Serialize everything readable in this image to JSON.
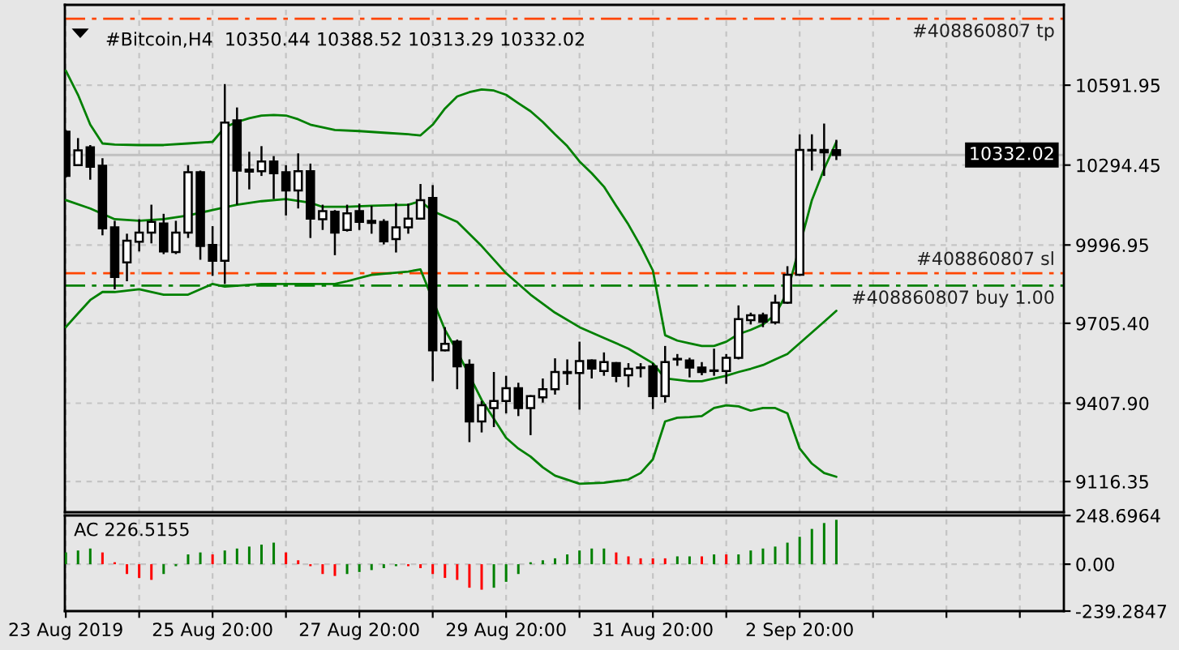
{
  "chart_data": [
    {
      "type": "candlestick",
      "title": "#Bitcoin,H4  10350.44 10388.52 10313.29 10332.02",
      "x": [
        "2019-08-23T20:00",
        "2019-08-24T00:00",
        "2019-08-24T04:00",
        "2019-08-24T08:00",
        "2019-08-24T12:00",
        "2019-08-24T16:00",
        "2019-08-24T20:00",
        "2019-08-25T00:00",
        "2019-08-25T04:00",
        "2019-08-25T08:00",
        "2019-08-25T12:00",
        "2019-08-25T16:00",
        "2019-08-25T20:00",
        "2019-08-26T00:00",
        "2019-08-26T04:00",
        "2019-08-26T08:00",
        "2019-08-26T12:00",
        "2019-08-26T16:00",
        "2019-08-26T20:00",
        "2019-08-27T00:00",
        "2019-08-27T04:00",
        "2019-08-27T08:00",
        "2019-08-27T12:00",
        "2019-08-27T16:00",
        "2019-08-27T20:00",
        "2019-08-28T00:00",
        "2019-08-28T04:00",
        "2019-08-28T08:00",
        "2019-08-28T12:00",
        "2019-08-28T16:00",
        "2019-08-28T20:00",
        "2019-08-29T00:00",
        "2019-08-29T04:00",
        "2019-08-29T08:00",
        "2019-08-29T12:00",
        "2019-08-29T16:00",
        "2019-08-29T20:00",
        "2019-08-30T00:00",
        "2019-08-30T04:00",
        "2019-08-30T08:00",
        "2019-08-30T12:00",
        "2019-08-30T16:00",
        "2019-08-30T20:00",
        "2019-08-31T00:00",
        "2019-08-31T04:00",
        "2019-08-31T08:00",
        "2019-08-31T12:00",
        "2019-08-31T16:00",
        "2019-08-31T20:00",
        "2019-09-01T00:00",
        "2019-09-01T04:00",
        "2019-09-01T08:00",
        "2019-09-01T12:00",
        "2019-09-01T16:00",
        "2019-09-01T20:00",
        "2019-09-02T00:00",
        "2019-09-02T04:00",
        "2019-09-02T08:00",
        "2019-09-02T12:00",
        "2019-09-02T16:00",
        "2019-09-02T20:00",
        "2019-09-03T00:00",
        "2019-09-03T04:00",
        "2019-09-03T08:00"
      ],
      "ohlc": [
        [
          10419,
          10425,
          10248,
          10254
        ],
        [
          10294,
          10395,
          10294,
          10349
        ],
        [
          10361,
          10369,
          10240,
          10288
        ],
        [
          10292,
          10320,
          10033,
          10059
        ],
        [
          10063,
          10087,
          9832,
          9878
        ],
        [
          9932,
          10039,
          9862,
          10013
        ],
        [
          10009,
          10093,
          9973,
          10043
        ],
        [
          10043,
          10147,
          10003,
          10083
        ],
        [
          10077,
          10113,
          9963,
          9973
        ],
        [
          9971,
          10087,
          9963,
          10043
        ],
        [
          10043,
          10294,
          10023,
          10268
        ],
        [
          10268,
          10274,
          9942,
          9993
        ],
        [
          9997,
          10067,
          9882,
          9938
        ],
        [
          9938,
          10596,
          9852,
          10453
        ],
        [
          10461,
          10509,
          10147,
          10274
        ],
        [
          10278,
          10344,
          10204,
          10270
        ],
        [
          10272,
          10365,
          10254,
          10308
        ],
        [
          10308,
          10328,
          10168,
          10264
        ],
        [
          10268,
          10294,
          10107,
          10200
        ],
        [
          10200,
          10338,
          10133,
          10272
        ],
        [
          10272,
          10300,
          10023,
          10095
        ],
        [
          10093,
          10147,
          10053,
          10123
        ],
        [
          10121,
          10127,
          9959,
          10043
        ],
        [
          10053,
          10147,
          10047,
          10115
        ],
        [
          10123,
          10151,
          10053,
          10083
        ],
        [
          10087,
          10143,
          10039,
          10079
        ],
        [
          10083,
          10093,
          9999,
          10011
        ],
        [
          10019,
          10153,
          9969,
          10063
        ],
        [
          10063,
          10151,
          10039,
          10095
        ],
        [
          10095,
          10224,
          10091,
          10164
        ],
        [
          10172,
          10220,
          9490,
          9605
        ],
        [
          9605,
          9691,
          9601,
          9629
        ],
        [
          9637,
          9645,
          9460,
          9545
        ],
        [
          9551,
          9571,
          9263,
          9340
        ],
        [
          9340,
          9416,
          9299,
          9400
        ],
        [
          9390,
          9524,
          9319,
          9416
        ],
        [
          9416,
          9510,
          9370,
          9464
        ],
        [
          9464,
          9484,
          9360,
          9390
        ],
        [
          9390,
          9438,
          9289,
          9434
        ],
        [
          9430,
          9500,
          9410,
          9460
        ],
        [
          9460,
          9575,
          9440,
          9524
        ],
        [
          9524,
          9571,
          9476,
          9520
        ],
        [
          9520,
          9637,
          9384,
          9565
        ],
        [
          9567,
          9571,
          9500,
          9537
        ],
        [
          9528,
          9597,
          9510,
          9561
        ],
        [
          9557,
          9561,
          9486,
          9510
        ],
        [
          9512,
          9557,
          9468,
          9536
        ],
        [
          9541,
          9557,
          9504,
          9539
        ],
        [
          9545,
          9557,
          9386,
          9434
        ],
        [
          9434,
          9621,
          9410,
          9561
        ],
        [
          9571,
          9591,
          9547,
          9573
        ],
        [
          9567,
          9577,
          9504,
          9541
        ],
        [
          9541,
          9561,
          9512,
          9524
        ],
        [
          9530,
          9611,
          9510,
          9528
        ],
        [
          9528,
          9591,
          9480,
          9577
        ],
        [
          9577,
          9772,
          9571,
          9721
        ],
        [
          9717,
          9745,
          9701,
          9735
        ],
        [
          9735,
          9745,
          9691,
          9711
        ],
        [
          9709,
          9812,
          9701,
          9782
        ],
        [
          9782,
          9918,
          9778,
          9886
        ],
        [
          9886,
          10409,
          9882,
          10351
        ],
        [
          10351,
          10409,
          10274,
          10349
        ],
        [
          10351,
          10449,
          10254,
          10342
        ],
        [
          10350.44,
          10388.52,
          10313.29,
          10332.02
        ]
      ],
      "color": "#000000",
      "colors": [
        "#000000",
        "#ffffff",
        "#000000",
        "#000000",
        "#000000",
        "#ffffff",
        "#ffffff",
        "#ffffff",
        "#000000",
        "#ffffff",
        "#ffffff",
        "#000000",
        "#000000",
        "#ffffff",
        "#000000",
        "#000000",
        "#ffffff",
        "#000000",
        "#000000",
        "#ffffff",
        "#000000",
        "#ffffff",
        "#000000",
        "#ffffff",
        "#000000",
        "#000000",
        "#000000",
        "#ffffff",
        "#ffffff",
        "#ffffff",
        "#000000",
        "#ffffff",
        "#000000",
        "#000000",
        "#ffffff",
        "#ffffff",
        "#ffffff",
        "#000000",
        "#ffffff",
        "#ffffff",
        "#ffffff",
        "#000000",
        "#ffffff",
        "#000000",
        "#ffffff",
        "#000000",
        "#ffffff",
        "#000000",
        "#000000",
        "#ffffff",
        "#ffffff",
        "#000000",
        "#000000",
        "#000000",
        "#ffffff",
        "#ffffff",
        "#ffffff",
        "#000000",
        "#ffffff",
        "#ffffff",
        "#ffffff",
        "#000000",
        "#000000",
        "#000000"
      ],
      "series": [
        {
          "type": "line",
          "color": "#008000",
          "x": [
            "2019-08-23T20:00",
            "2019-08-24T00:00",
            "2019-08-24T04:00",
            "2019-08-24T08:00",
            "2019-08-24T12:00",
            "2019-08-24T20:00",
            "2019-08-25T04:00",
            "2019-08-25T12:00",
            "2019-08-25T20:00",
            "2019-08-26T00:00",
            "2019-08-26T04:00",
            "2019-08-26T08:00",
            "2019-08-26T12:00",
            "2019-08-26T16:00",
            "2019-08-26T20:00",
            "2019-08-27T00:00",
            "2019-08-27T04:00",
            "2019-08-27T12:00",
            "2019-08-27T20:00",
            "2019-08-28T04:00",
            "2019-08-28T12:00",
            "2019-08-28T16:00",
            "2019-08-28T20:00",
            "2019-08-29T00:00",
            "2019-08-29T04:00",
            "2019-08-29T08:00",
            "2019-08-29T12:00",
            "2019-08-29T16:00",
            "2019-08-29T20:00",
            "2019-08-30T00:00",
            "2019-08-30T04:00",
            "2019-08-30T08:00",
            "2019-08-30T12:00",
            "2019-08-30T16:00",
            "2019-08-30T20:00",
            "2019-08-31T00:00",
            "2019-08-31T04:00",
            "2019-08-31T08:00",
            "2019-08-31T12:00",
            "2019-08-31T16:00",
            "2019-08-31T20:00",
            "2019-09-01T00:00",
            "2019-09-01T04:00",
            "2019-09-01T08:00",
            "2019-09-01T12:00",
            "2019-09-01T16:00",
            "2019-09-01T20:00",
            "2019-09-02T00:00",
            "2019-09-02T04:00",
            "2019-09-02T08:00",
            "2019-09-02T12:00",
            "2019-09-02T16:00",
            "2019-09-03T00:00",
            "2019-09-03T04:00",
            "2019-09-03T08:00"
          ],
          "values": [
            10646,
            10556,
            10445,
            10375,
            10371,
            10369,
            10369,
            10375,
            10381,
            10435,
            10455,
            10469,
            10479,
            10481,
            10479,
            10465,
            10445,
            10425,
            10421,
            10415,
            10409,
            10405,
            10445,
            10505,
            10550,
            10566,
            10576,
            10572,
            10556,
            10525,
            10495,
            10455,
            10409,
            10365,
            10308,
            10264,
            10214,
            10143,
            10073,
            9993,
            9902,
            9661,
            9641,
            9631,
            9621,
            9621,
            9637,
            9665,
            9681,
            9701,
            9737,
            9822,
            10164,
            10280,
            10381
          ]
        },
        {
          "type": "line",
          "color": "#008000",
          "x": [
            "2019-08-23T20:00",
            "2019-08-24T04:00",
            "2019-08-24T12:00",
            "2019-08-24T20:00",
            "2019-08-25T04:00",
            "2019-08-25T12:00",
            "2019-08-25T20:00",
            "2019-08-26T04:00",
            "2019-08-26T12:00",
            "2019-08-26T20:00",
            "2019-08-27T04:00",
            "2019-08-27T08:00",
            "2019-08-27T16:00",
            "2019-08-28T00:00",
            "2019-08-28T12:00",
            "2019-08-28T16:00",
            "2019-08-28T20:00",
            "2019-08-29T04:00",
            "2019-08-29T12:00",
            "2019-08-29T20:00",
            "2019-08-30T04:00",
            "2019-08-30T12:00",
            "2019-08-30T20:00",
            "2019-08-31T04:00",
            "2019-08-31T12:00",
            "2019-08-31T20:00",
            "2019-09-01T00:00",
            "2019-09-01T08:00",
            "2019-09-01T12:00",
            "2019-09-01T20:00",
            "2019-09-02T00:00",
            "2019-09-02T04:00",
            "2019-09-02T08:00",
            "2019-09-02T12:00",
            "2019-09-02T16:00",
            "2019-09-02T20:00",
            "2019-09-03T00:00",
            "2019-09-03T04:00",
            "2019-09-03T08:00"
          ],
          "values": [
            10164,
            10133,
            10093,
            10087,
            10093,
            10107,
            10127,
            10147,
            10160,
            10168,
            10154,
            10139,
            10139,
            10143,
            10147,
            10160,
            10123,
            10083,
            9993,
            9892,
            9812,
            9745,
            9691,
            9651,
            9611,
            9557,
            9500,
            9490,
            9490,
            9510,
            9524,
            9536,
            9550,
            9571,
            9591,
            9631,
            9671,
            9711,
            9752
          ]
        },
        {
          "type": "line",
          "color": "#008000",
          "x": [
            "2019-08-23T20:00",
            "2019-08-24T00:00",
            "2019-08-24T04:00",
            "2019-08-24T08:00",
            "2019-08-24T12:00",
            "2019-08-24T20:00",
            "2019-08-25T04:00",
            "2019-08-25T12:00",
            "2019-08-25T20:00",
            "2019-08-26T00:00",
            "2019-08-26T12:00",
            "2019-08-27T00:00",
            "2019-08-27T12:00",
            "2019-08-27T16:00",
            "2019-08-28T00:00",
            "2019-08-28T12:00",
            "2019-08-28T16:00",
            "2019-08-29T00:00",
            "2019-08-29T04:00",
            "2019-08-29T12:00",
            "2019-08-29T16:00",
            "2019-08-29T20:00",
            "2019-08-30T00:00",
            "2019-08-30T04:00",
            "2019-08-30T08:00",
            "2019-08-30T12:00",
            "2019-08-30T20:00",
            "2019-08-31T04:00",
            "2019-08-31T12:00",
            "2019-08-31T16:00",
            "2019-08-31T20:00",
            "2019-09-01T00:00",
            "2019-09-01T04:00",
            "2019-09-01T08:00",
            "2019-09-01T12:00",
            "2019-09-01T16:00",
            "2019-09-01T20:00",
            "2019-09-02T00:00",
            "2019-09-02T04:00",
            "2019-09-02T08:00",
            "2019-09-02T12:00",
            "2019-09-02T16:00",
            "2019-09-02T20:00",
            "2019-09-03T00:00",
            "2019-09-03T04:00",
            "2019-09-03T08:00"
          ],
          "values": [
            9691,
            9742,
            9792,
            9822,
            9822,
            9832,
            9812,
            9812,
            9852,
            9842,
            9852,
            9852,
            9852,
            9862,
            9886,
            9898,
            9906,
            9681,
            9601,
            9420,
            9350,
            9279,
            9239,
            9209,
            9169,
            9138,
            9108,
            9112,
            9124,
            9148,
            9199,
            9340,
            9354,
            9356,
            9360,
            9390,
            9400,
            9396,
            9380,
            9390,
            9390,
            9370,
            9239,
            9183,
            9148,
            9134
          ]
        }
      ],
      "ref_lines": [
        {
          "axis": "y",
          "value": 10839,
          "label": "#408860807 tp",
          "color": "#ff4500",
          "line_style": "dashed"
        },
        {
          "axis": "y",
          "value": 9892,
          "label": "#408860807 sl",
          "color": "#ff4500",
          "line_style": "dashed"
        },
        {
          "axis": "y",
          "value": 9846,
          "label": "#408860807 buy 1.00",
          "color": "#008000",
          "line_style": "dashed"
        },
        {
          "axis": "y",
          "value": 10332.02,
          "label": "10332.02",
          "color": "#c0c0c0",
          "line_style": "solid"
        }
      ],
      "xlim": [
        "2019-08-23T19:42",
        "2019-09-06T10:24"
      ],
      "xticks": [
        {
          "value": "2019-08-23T20:00",
          "label": null
        },
        {
          "value": "2019-08-24T20:00",
          "label": null
        },
        {
          "value": "2019-08-25T20:00",
          "label": null
        },
        {
          "value": "2019-08-26T20:00",
          "label": null
        },
        {
          "value": "2019-08-27T20:00",
          "label": null
        },
        {
          "value": "2019-08-28T20:00",
          "label": null
        },
        {
          "value": "2019-08-29T20:00",
          "label": null
        },
        {
          "value": "2019-08-30T20:00",
          "label": null
        },
        {
          "value": "2019-08-31T20:00",
          "label": null
        },
        {
          "value": "2019-09-01T20:00",
          "label": null
        },
        {
          "value": "2019-09-02T20:00",
          "label": null
        },
        {
          "value": "2019-09-03T20:00",
          "label": null
        },
        {
          "value": "2019-09-04T20:00",
          "label": null
        },
        {
          "value": "2019-09-05T20:00",
          "label": null
        }
      ],
      "ylim": [
        9002,
        10891
      ],
      "yticks": [
        10591.95,
        10294.45,
        9996.95,
        {
          "value": 9705.4,
          "label": "9705.40"
        },
        {
          "value": 9407.9,
          "label": "9407.90"
        },
        9116.35
      ],
      "grid": true,
      "tick_labels": "y"
    },
    {
      "type": "bar",
      "title": "AC 226.5155",
      "x": [
        "2019-08-23T20:00",
        "2019-08-24T00:00",
        "2019-08-24T04:00",
        "2019-08-24T08:00",
        "2019-08-24T12:00",
        "2019-08-24T16:00",
        "2019-08-24T20:00",
        "2019-08-25T00:00",
        "2019-08-25T04:00",
        "2019-08-25T08:00",
        "2019-08-25T12:00",
        "2019-08-25T16:00",
        "2019-08-25T20:00",
        "2019-08-26T00:00",
        "2019-08-26T04:00",
        "2019-08-26T08:00",
        "2019-08-26T12:00",
        "2019-08-26T16:00",
        "2019-08-26T20:00",
        "2019-08-27T00:00",
        "2019-08-27T04:00",
        "2019-08-27T08:00",
        "2019-08-27T12:00",
        "2019-08-27T16:00",
        "2019-08-27T20:00",
        "2019-08-28T00:00",
        "2019-08-28T04:00",
        "2019-08-28T08:00",
        "2019-08-28T12:00",
        "2019-08-28T16:00",
        "2019-08-28T20:00",
        "2019-08-29T00:00",
        "2019-08-29T04:00",
        "2019-08-29T08:00",
        "2019-08-29T12:00",
        "2019-08-29T16:00",
        "2019-08-29T20:00",
        "2019-08-30T00:00",
        "2019-08-30T04:00",
        "2019-08-30T08:00",
        "2019-08-30T12:00",
        "2019-08-30T16:00",
        "2019-08-30T20:00",
        "2019-08-31T00:00",
        "2019-08-31T04:00",
        "2019-08-31T08:00",
        "2019-08-31T12:00",
        "2019-08-31T16:00",
        "2019-08-31T20:00",
        "2019-09-01T00:00",
        "2019-09-01T04:00",
        "2019-09-01T08:00",
        "2019-09-01T12:00",
        "2019-09-01T16:00",
        "2019-09-01T20:00",
        "2019-09-02T00:00",
        "2019-09-02T04:00",
        "2019-09-02T08:00",
        "2019-09-02T12:00",
        "2019-09-02T16:00",
        "2019-09-02T20:00",
        "2019-09-03T00:00",
        "2019-09-03T04:00",
        "2019-09-03T08:00"
      ],
      "values": [
        60,
        70,
        80,
        60,
        10,
        -50,
        -70,
        -80,
        -50,
        -10,
        50,
        60,
        50,
        70,
        80,
        90,
        100,
        110,
        60,
        20,
        -10,
        -50,
        -60,
        -50,
        -40,
        -30,
        -20,
        -10,
        -10,
        -20,
        -50,
        -70,
        -80,
        -120,
        -130,
        -120,
        -90,
        -50,
        10,
        20,
        30,
        50,
        70,
        80,
        80,
        60,
        40,
        30,
        30,
        30,
        40,
        40,
        40,
        50,
        50,
        50,
        70,
        80,
        90,
        110,
        140,
        180,
        210,
        226.5155
      ],
      "colors": [
        "#008000",
        "#008000",
        "#008000",
        "#ff0000",
        "#ff0000",
        "#ff0000",
        "#ff0000",
        "#ff0000",
        "#008000",
        "#008000",
        "#008000",
        "#008000",
        "#ff0000",
        "#008000",
        "#008000",
        "#008000",
        "#008000",
        "#008000",
        "#ff0000",
        "#ff0000",
        "#ff0000",
        "#ff0000",
        "#ff0000",
        "#008000",
        "#008000",
        "#008000",
        "#008000",
        "#008000",
        "#ff0000",
        "#ff0000",
        "#ff0000",
        "#ff0000",
        "#ff0000",
        "#ff0000",
        "#ff0000",
        "#008000",
        "#008000",
        "#008000",
        "#008000",
        "#008000",
        "#008000",
        "#008000",
        "#008000",
        "#008000",
        "#008000",
        "#ff0000",
        "#ff0000",
        "#ff0000",
        "#ff0000",
        "#ff0000",
        "#008000",
        "#008000",
        "#ff0000",
        "#008000",
        "#ff0000",
        "#008000",
        "#008000",
        "#008000",
        "#008000",
        "#008000",
        "#008000",
        "#008000",
        "#008000",
        "#008000"
      ],
      "xlim": [
        "2019-08-23T19:42",
        "2019-09-06T10:24"
      ],
      "xticks": [
        {
          "value": "2019-08-23T20:00",
          "label": "23 Aug 2019"
        },
        {
          "value": "2019-08-24T20:00",
          "label": null
        },
        {
          "value": "2019-08-25T20:00",
          "label": "25 Aug 20:00"
        },
        {
          "value": "2019-08-26T20:00",
          "label": null
        },
        {
          "value": "2019-08-27T20:00",
          "label": "27 Aug 20:00"
        },
        {
          "value": "2019-08-28T20:00",
          "label": null
        },
        {
          "value": "2019-08-29T20:00",
          "label": "29 Aug 20:00"
        },
        {
          "value": "2019-08-30T20:00",
          "label": null
        },
        {
          "value": "2019-08-31T20:00",
          "label": "31 Aug 20:00"
        },
        {
          "value": "2019-09-01T20:00",
          "label": null
        },
        {
          "value": "2019-09-02T20:00",
          "label": "2 Sep 20:00"
        },
        {
          "value": "2019-09-03T20:00",
          "label": null
        },
        {
          "value": "2019-09-04T20:00",
          "label": null
        },
        {
          "value": "2019-09-05T20:00",
          "label": null
        }
      ],
      "ylim": [
        -239.2847,
        248.6964
      ],
      "yticks": [
        248.6964,
        {
          "value": 0,
          "label": "0.00"
        },
        -239.2847
      ],
      "grid": true
    }
  ]
}
